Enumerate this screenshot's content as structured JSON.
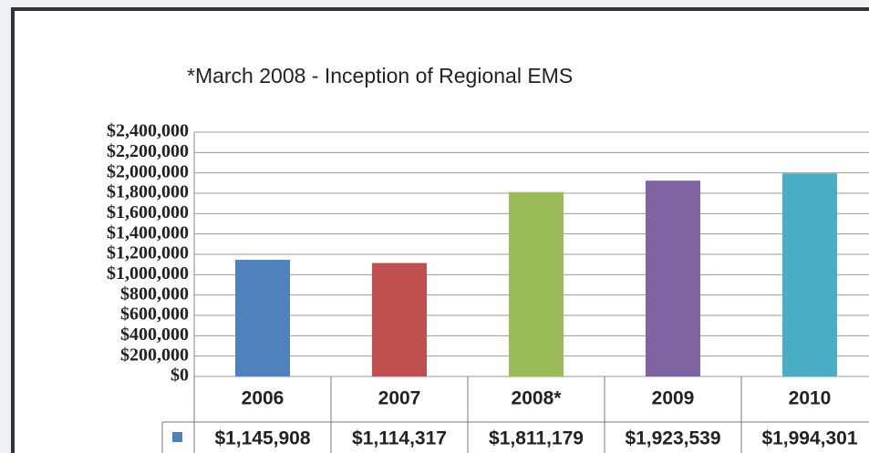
{
  "chart_data": {
    "type": "bar",
    "title": "*March 2008 - Inception of Regional EMS",
    "categories": [
      "2006",
      "2007",
      "2008*",
      "2009",
      "2010"
    ],
    "values": [
      1145908,
      1114317,
      1811179,
      1923539,
      1994301
    ],
    "value_labels": [
      "$1,145,908",
      "$1,114,317",
      "$1,811,179",
      "$1,923,539",
      "$1,994,301"
    ],
    "colors": [
      "#4f81bd",
      "#c0504d",
      "#9bbb59",
      "#8064a2",
      "#4bacc6"
    ],
    "legend_color": "#4f81bd",
    "ylim": [
      0,
      2400000
    ],
    "yticks": [
      {
        "value": 0,
        "label": "$0"
      },
      {
        "value": 200000,
        "label": "$200,000"
      },
      {
        "value": 400000,
        "label": "$400,000"
      },
      {
        "value": 600000,
        "label": "$600,000"
      },
      {
        "value": 800000,
        "label": "$800,000"
      },
      {
        "value": 1000000,
        "label": "$1,000,000"
      },
      {
        "value": 1200000,
        "label": "$1,200,000"
      },
      {
        "value": 1400000,
        "label": "$1,400,000"
      },
      {
        "value": 1600000,
        "label": "$1,600,000"
      },
      {
        "value": 1800000,
        "label": "$1,800,000"
      },
      {
        "value": 2000000,
        "label": "$2,000,000"
      },
      {
        "value": 2200000,
        "label": "$2,200,000"
      },
      {
        "value": 2400000,
        "label": "$2,400,000"
      }
    ],
    "grid": true
  }
}
